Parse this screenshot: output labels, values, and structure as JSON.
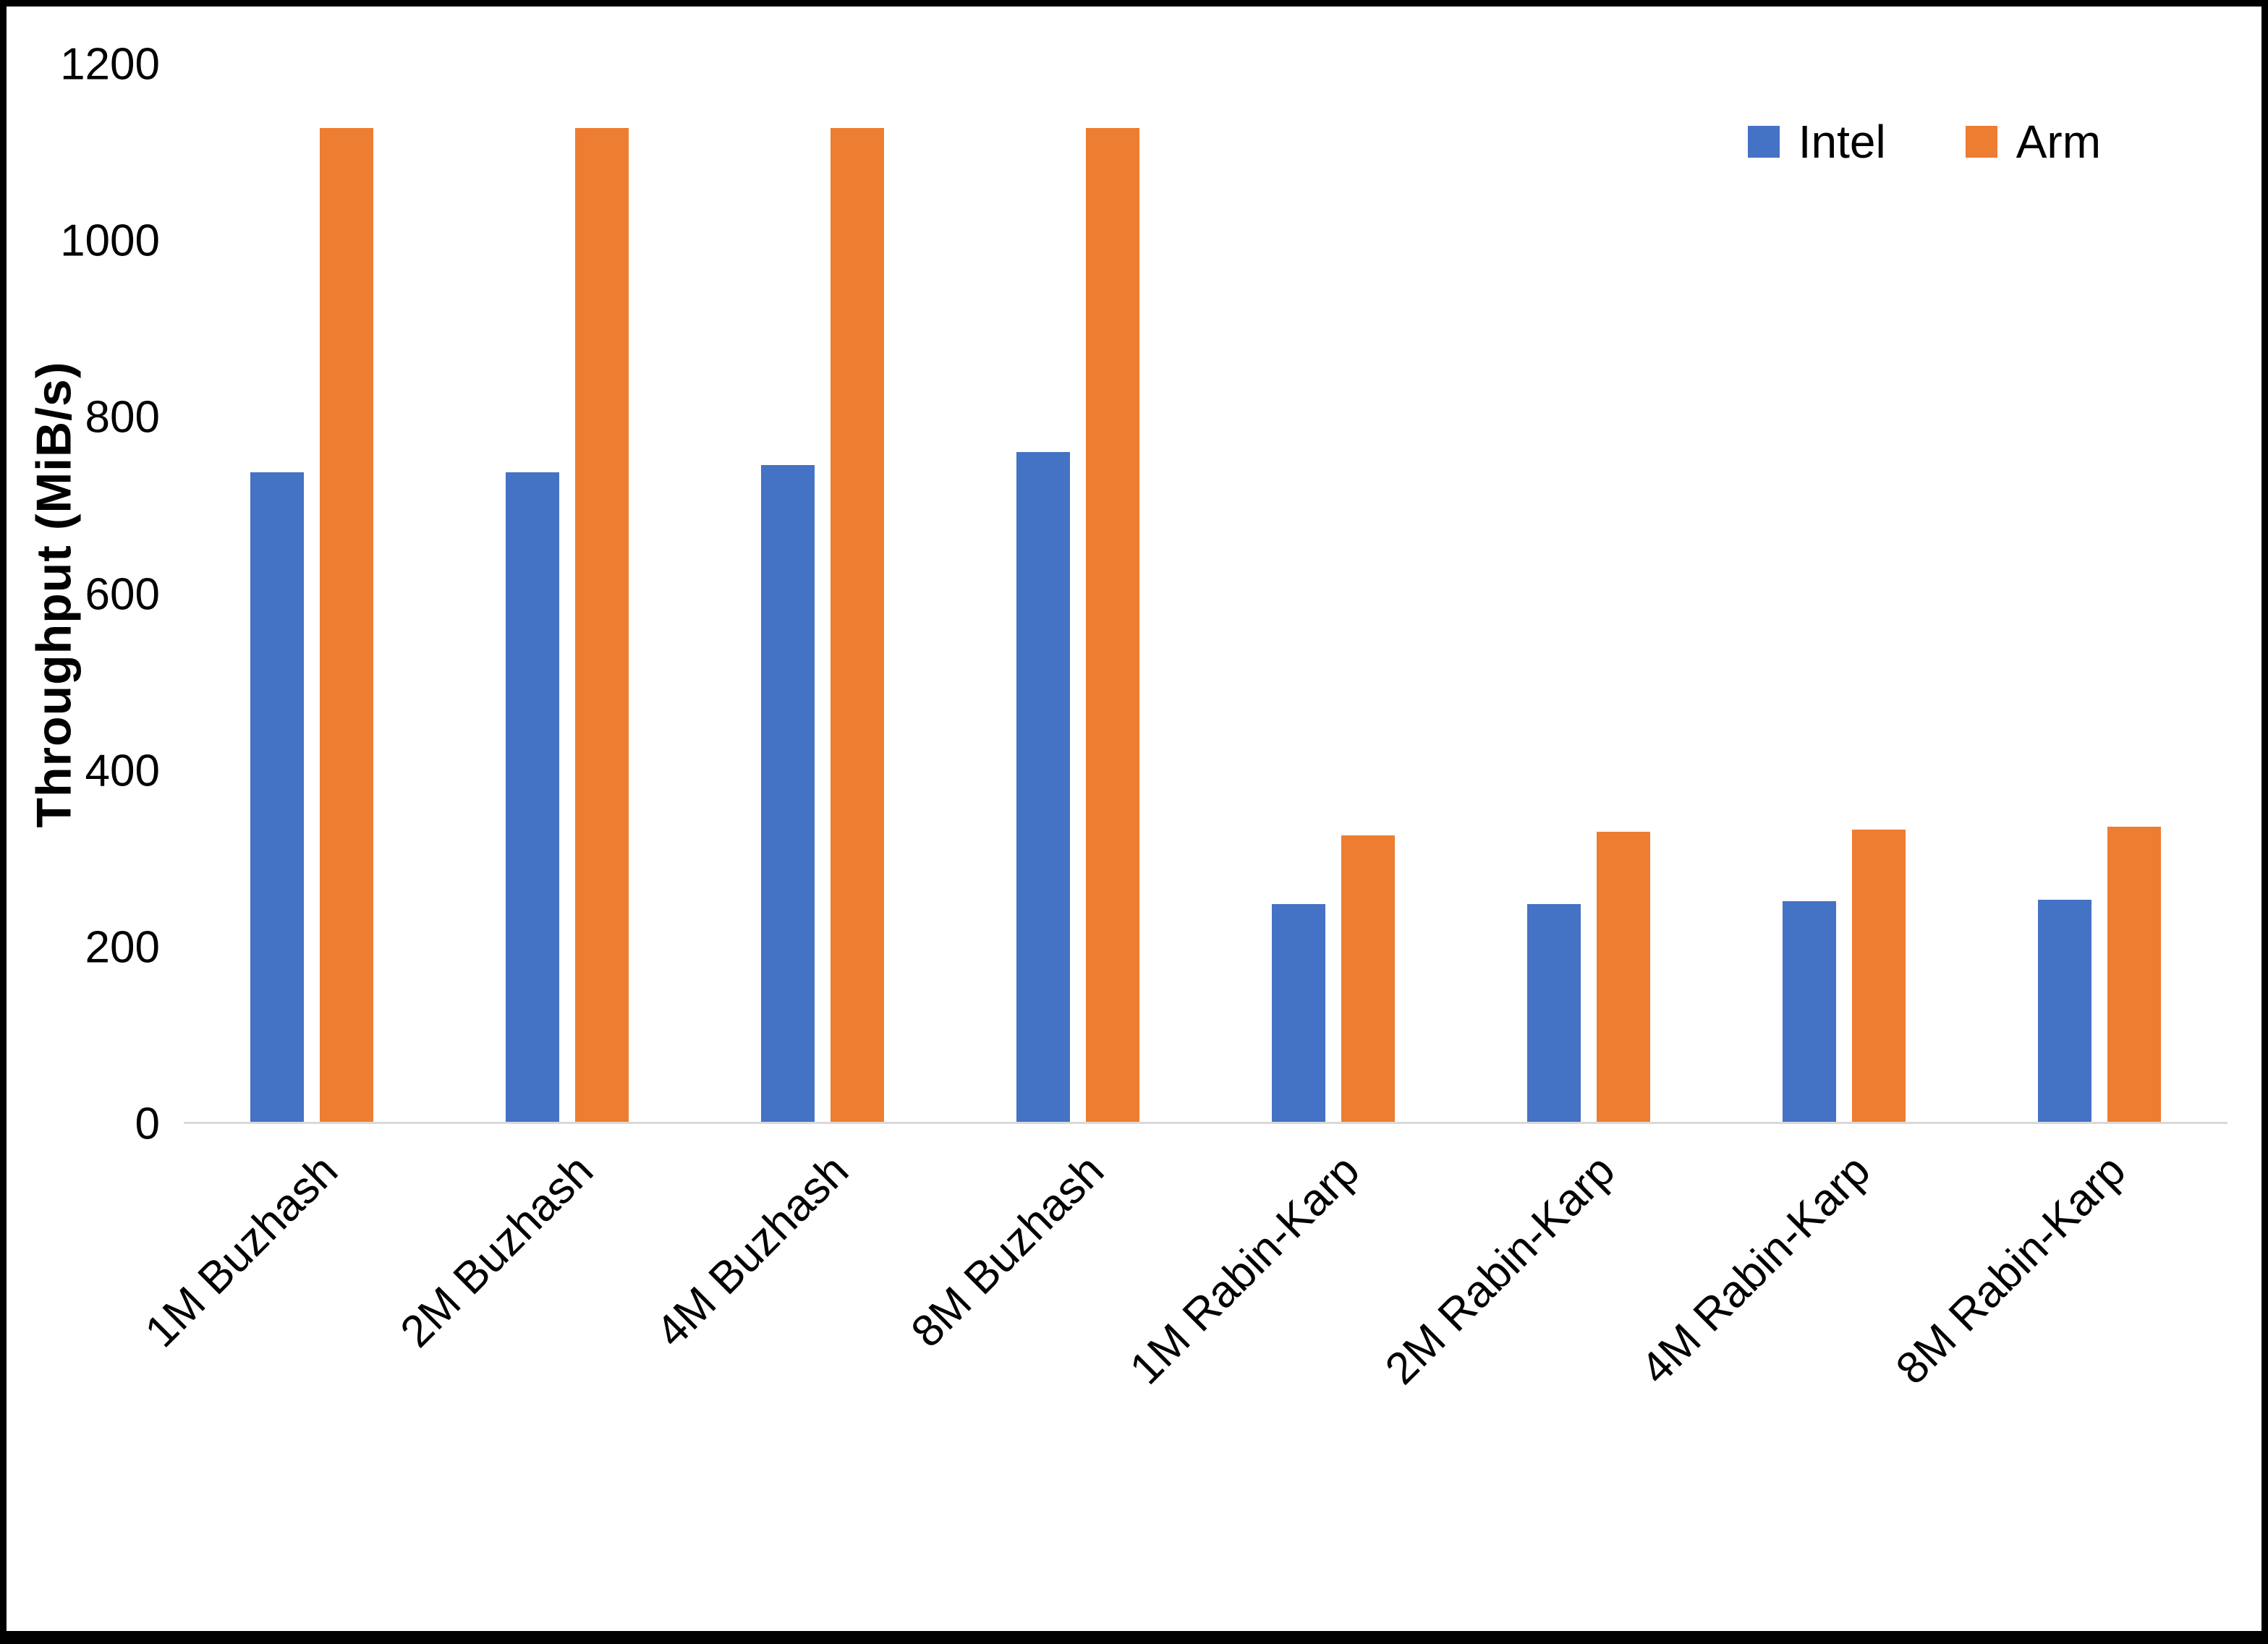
{
  "chart_data": {
    "type": "bar",
    "title": "",
    "ylabel": "Throughput (MiB/s)",
    "xlabel": "",
    "ylim": [
      0,
      1200
    ],
    "yticks": [
      0,
      200,
      400,
      600,
      800,
      1000,
      1200
    ],
    "grid": false,
    "legend_position": "top-right",
    "categories": [
      "1M Buzhash",
      "2M Buzhash",
      "4M Buzhash",
      "8M Buzhash",
      "1M Rabin-Karp",
      "2M Rabin-Karp",
      "4M Rabin-Karp",
      "8M Rabin-Karp"
    ],
    "series": [
      {
        "name": "Intel",
        "color": "#4472C4",
        "values": [
          737,
          737,
          745,
          760,
          247,
          247,
          250,
          252
        ]
      },
      {
        "name": "Arm",
        "color": "#ED7D31",
        "values": [
          1128,
          1128,
          1128,
          1128,
          325,
          329,
          332,
          335
        ]
      }
    ]
  }
}
